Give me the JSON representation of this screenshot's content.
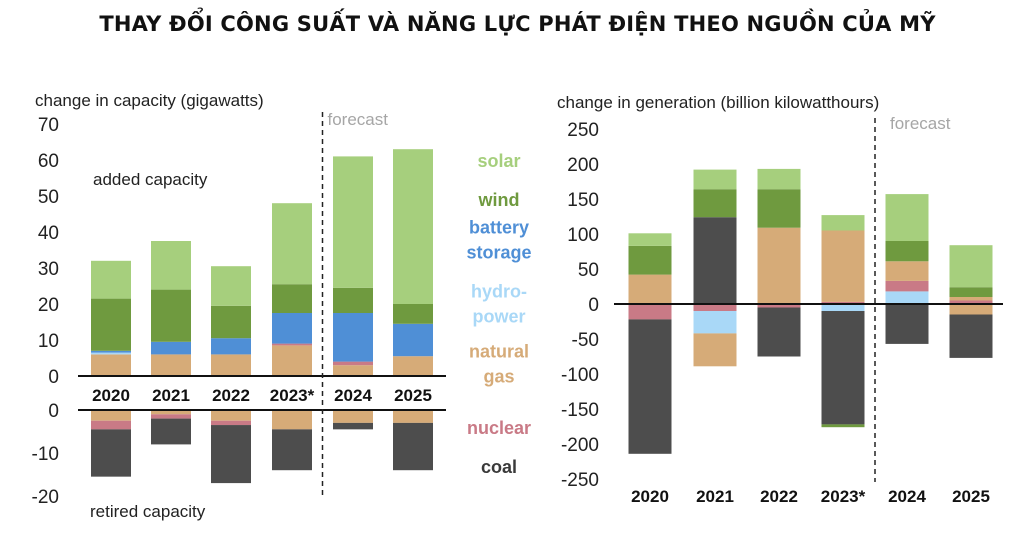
{
  "page_title": "THAY ĐỔI CÔNG SUẤT VÀ NĂNG LỰC PHÁT ĐIỆN THEO NGUỒN CỦA MỸ",
  "colors": {
    "solar": "#a6cf7d",
    "wind": "#6f9a3f",
    "battery": "#4f8fd6",
    "hydro": "#a9d8f7",
    "gas": "#d6ab78",
    "nuclear": "#c97a86",
    "coal": "#4d4d4d",
    "forecast_line": "#222222",
    "forecast_text": "#a6a6a6"
  },
  "legend": [
    {
      "key": "solar",
      "label": "solar"
    },
    {
      "key": "wind",
      "label": "wind"
    },
    {
      "key": "battery",
      "label": "battery\nstorage"
    },
    {
      "key": "hydro",
      "label": "hydro-\npower"
    },
    {
      "key": "gas",
      "label": "natural\ngas"
    },
    {
      "key": "nuclear",
      "label": "nuclear"
    },
    {
      "key": "coal",
      "label": "coal"
    }
  ],
  "chart_data": [
    {
      "type": "bar",
      "stacked": true,
      "title": "change in capacity (gigawatts)",
      "categories": [
        "2020",
        "2021",
        "2022",
        "2023*",
        "2024",
        "2025"
      ],
      "forecast_label": "forecast",
      "forecast_from": "2024",
      "added": {
        "label": "added capacity",
        "ylim": [
          0,
          70
        ],
        "ticks": [
          0,
          10,
          20,
          30,
          40,
          50,
          60,
          70
        ],
        "series": [
          {
            "key": "gas",
            "values": [
              6,
              6,
              6,
              8.5,
              3,
              5.5
            ]
          },
          {
            "key": "hydro",
            "values": [
              0.5,
              0,
              0,
              0,
              0,
              0
            ]
          },
          {
            "key": "nuclear",
            "values": [
              0,
              0,
              0,
              0.5,
              1,
              0
            ]
          },
          {
            "key": "battery",
            "values": [
              0.5,
              3.5,
              4.5,
              8.5,
              13.5,
              9
            ]
          },
          {
            "key": "wind",
            "values": [
              14.5,
              14.5,
              9,
              8,
              7,
              5.5
            ]
          },
          {
            "key": "solar",
            "values": [
              10.5,
              13.5,
              11,
              22.5,
              36.5,
              43
            ]
          }
        ]
      },
      "retired": {
        "label": "retired capacity",
        "ylim": [
          -20,
          0
        ],
        "ticks": [
          0,
          -10,
          -20
        ],
        "series": [
          {
            "key": "gas",
            "values": [
              -2.5,
              -1,
              -2.5,
              -4.5,
              -3,
              -3
            ]
          },
          {
            "key": "nuclear",
            "values": [
              -2,
              -1,
              -1,
              0,
              0,
              0
            ]
          },
          {
            "key": "coal",
            "values": [
              -11,
              -6,
              -13.5,
              -9.5,
              -1.5,
              -11
            ]
          }
        ]
      }
    },
    {
      "type": "bar",
      "stacked": true,
      "title": "change in generation (billion kilowatthours)",
      "categories": [
        "2020",
        "2021",
        "2022",
        "2023*",
        "2024",
        "2025"
      ],
      "forecast_label": "forecast",
      "forecast_from": "2024",
      "ylim": [
        -250,
        250
      ],
      "ticks": [
        250,
        200,
        150,
        100,
        50,
        0,
        -50,
        -100,
        -150,
        -200,
        -250
      ],
      "positive_series": [
        {
          "key": "gas",
          "values": [
            42,
            0,
            0,
            0,
            0,
            0
          ]
        },
        {
          "key": "hydro",
          "values": [
            0,
            0,
            0,
            0,
            18,
            0
          ]
        },
        {
          "key": "nuclear",
          "values": [
            0,
            0,
            0,
            3,
            15,
            5
          ]
        },
        {
          "key": "coal",
          "values": [
            0,
            124,
            0,
            0,
            0,
            0
          ]
        },
        {
          "key": "gas",
          "values": [
            0,
            0,
            109,
            102,
            28,
            5
          ]
        },
        {
          "key": "wind",
          "values": [
            41,
            40,
            55,
            0,
            29,
            14
          ]
        },
        {
          "key": "solar",
          "values": [
            18,
            28,
            29,
            22,
            67,
            60
          ]
        }
      ],
      "negative_series": [
        {
          "key": "nuclear",
          "values": [
            -22,
            -10,
            -5,
            0,
            0,
            0
          ]
        },
        {
          "key": "hydro",
          "values": [
            0,
            -32,
            0,
            -10,
            0,
            0
          ]
        },
        {
          "key": "gas",
          "values": [
            0,
            -47,
            0,
            0,
            0,
            -15
          ]
        },
        {
          "key": "coal",
          "values": [
            -192,
            0,
            -70,
            -162,
            -57,
            -62
          ]
        },
        {
          "key": "wind",
          "values": [
            0,
            0,
            0,
            -4,
            0,
            0
          ]
        }
      ]
    }
  ]
}
